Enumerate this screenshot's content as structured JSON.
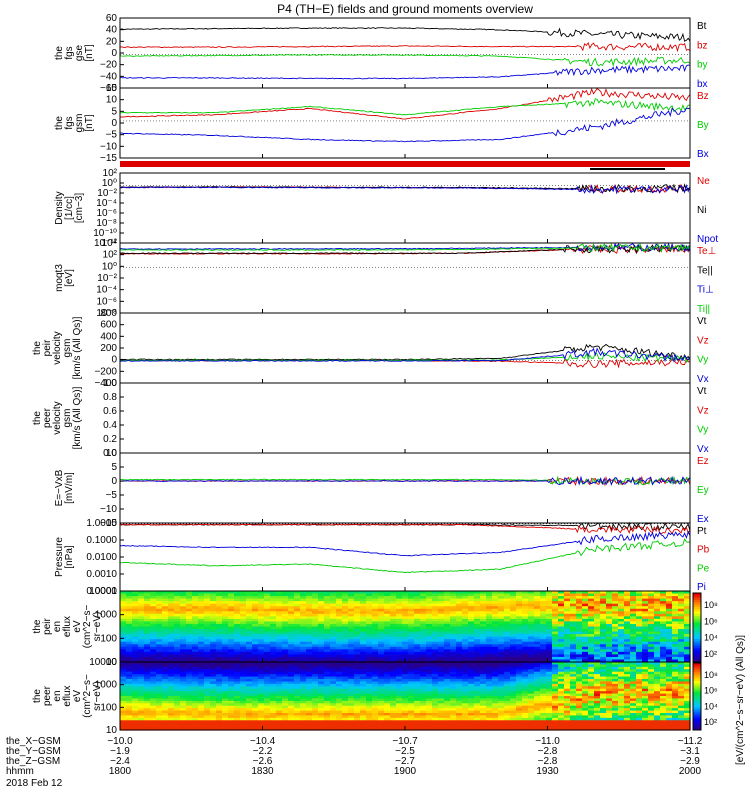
{
  "title": "P4 (TH−E) fields and ground moments overview",
  "date_label": "2018 Feb 12",
  "colors": {
    "black": "#000000",
    "red": "#dd0000",
    "green": "#00cc00",
    "blue": "#0000dd"
  },
  "ephemeris": {
    "row_labels": [
      "the_X−GSM",
      "the_Y−GSM",
      "the_Z−GSM",
      "hhmm"
    ],
    "columns": [
      [
        "−10.0",
        "−1.9",
        "−2.4",
        "1800"
      ],
      [
        "−10.4",
        "−2.2",
        "−2.6",
        "1830"
      ],
      [
        "−10.7",
        "−2.5",
        "−2.7",
        "1900"
      ],
      [
        "−11.0",
        "−2.8",
        "−2.8",
        "1930"
      ],
      [
        "−11.2",
        "−3.1",
        "−2.9",
        "2000"
      ]
    ]
  },
  "chart_data": [
    {
      "type": "line",
      "id": "fgs_gse",
      "ylabel": [
        "the",
        "fgs",
        "gse",
        "[nT]"
      ],
      "ylim": [
        -60,
        65
      ],
      "yticks": [
        "60",
        "40",
        "20",
        "0",
        "−20",
        "−40",
        "−60"
      ],
      "time_range": [
        "18:00",
        "20:00"
      ],
      "series": [
        {
          "name": "Bt",
          "color": "black",
          "levels": [
            45,
            46,
            47,
            47,
            44,
            36,
            30
          ],
          "noise_after": 0.75
        },
        {
          "name": "bz",
          "color": "red",
          "levels": [
            13,
            13,
            14,
            15,
            14,
            14,
            13
          ],
          "noise_after": 0.8
        },
        {
          "name": "by",
          "color": "green",
          "levels": [
            -3,
            -2,
            -1,
            -1,
            -3,
            -14,
            -10
          ],
          "noise_after": 0.78
        },
        {
          "name": "bx",
          "color": "blue",
          "levels": [
            -42,
            -42,
            -43,
            -43,
            -40,
            -28,
            -25
          ],
          "noise_after": 0.76
        }
      ]
    },
    {
      "type": "line",
      "id": "fgs_gsm",
      "ylabel": [
        "the",
        "fgs",
        "gsm",
        "[nT]"
      ],
      "ylim": [
        -18,
        16
      ],
      "yticks": [
        "15",
        "10",
        "5",
        "0",
        "−5",
        "−10",
        "−15"
      ],
      "time_range": [
        "18:00",
        "20:00"
      ],
      "series": [
        {
          "name": "Bz",
          "color": "red",
          "levels": [
            2,
            3,
            6,
            1,
            6,
            14,
            11
          ],
          "noise_after": 0.75
        },
        {
          "name": "By",
          "color": "green",
          "levels": [
            4,
            4,
            7,
            3,
            7,
            9,
            6
          ],
          "noise_after": 0.78
        },
        {
          "name": "Bx",
          "color": "blue",
          "levels": [
            -6,
            -7,
            -9,
            -10,
            -9,
            -3,
            6
          ],
          "noise_after": 0.76
        }
      ]
    },
    {
      "type": "line",
      "id": "density",
      "ylabel": [
        "Density",
        "[1/cc]",
        "[cm−3]"
      ],
      "ylim": [
        -14,
        3
      ],
      "log": true,
      "yticks": [
        "10²",
        "10⁰",
        "10⁻²",
        "10⁻⁴",
        "10⁻⁶",
        "10⁻⁸",
        "10⁻¹⁰",
        "10⁻¹²"
      ],
      "time_range": [
        "18:00",
        "20:00"
      ],
      "series": [
        {
          "name": "Ne",
          "color": "red",
          "levels": [
            -0.5,
            -0.4,
            -0.5,
            -0.6,
            -0.9,
            -0.8
          ],
          "noise_after": 0.8
        },
        {
          "name": "Ni",
          "color": "black",
          "levels": [
            -0.4,
            -0.4,
            -0.5,
            -0.5,
            -0.8,
            -0.7
          ],
          "noise_after": 0.8
        },
        {
          "name": "Npot",
          "color": "blue",
          "levels": [
            -0.5,
            -0.5,
            -0.6,
            -0.6,
            -1.0,
            -0.9
          ],
          "noise_after": 0.8
        }
      ]
    },
    {
      "type": "line",
      "id": "temperature",
      "ylabel": [
        "moqt3",
        "[eV]"
      ],
      "ylim": [
        -8.5,
        4.5
      ],
      "log": true,
      "yticks": [
        "10⁴",
        "10²",
        "10⁰",
        "10⁻²",
        "10⁻⁴",
        "10⁻⁶",
        "10⁻⁸"
      ],
      "time_range": [
        "18:00",
        "20:00"
      ],
      "series": [
        {
          "name": "Te⊥",
          "color": "red",
          "levels": [
            2.5,
            2.5,
            2.5,
            2.6,
            3.3,
            3.3
          ],
          "noise_after": 0.78
        },
        {
          "name": "Te||",
          "color": "black",
          "levels": [
            2.6,
            2.6,
            2.6,
            2.6,
            3.4,
            3.4
          ],
          "noise_after": 0.78
        },
        {
          "name": "Ti⊥",
          "color": "blue",
          "levels": [
            3.4,
            3.4,
            3.4,
            3.5,
            3.7,
            3.7
          ],
          "noise_after": 0.8
        },
        {
          "name": "Ti||",
          "color": "green",
          "levels": [
            3.2,
            3.2,
            3.2,
            3.3,
            3.6,
            3.6
          ],
          "noise_after": 0.8
        }
      ]
    },
    {
      "type": "line",
      "id": "peir_velocity",
      "ylabel": [
        "the",
        "peir",
        "velocity",
        "gsm",
        "[km/s (All Qs)]"
      ],
      "ylim": [
        -400,
        850
      ],
      "yticks": [
        "800",
        "600",
        "400",
        "200",
        "0",
        "−200",
        "−400"
      ],
      "time_range": [
        "18:00",
        "20:00"
      ],
      "series": [
        {
          "name": "Vt",
          "color": "black",
          "levels": [
            20,
            20,
            20,
            20,
            40,
            250,
            60
          ],
          "noise_after": 0.78
        },
        {
          "name": "Vz",
          "color": "red",
          "levels": [
            0,
            0,
            0,
            0,
            -10,
            -60,
            -20
          ],
          "noise_after": 0.78
        },
        {
          "name": "Vy",
          "color": "green",
          "levels": [
            5,
            5,
            5,
            5,
            10,
            80,
            20
          ],
          "noise_after": 0.78
        },
        {
          "name": "Vx",
          "color": "blue",
          "levels": [
            -5,
            -5,
            -5,
            -5,
            0,
            150,
            30
          ],
          "noise_after": 0.78
        }
      ]
    },
    {
      "type": "line",
      "id": "peer_velocity",
      "ylabel": [
        "the",
        "peer",
        "velocity",
        "gsm",
        "[km/s (All Qs)]"
      ],
      "ylim": [
        0,
        1
      ],
      "yticks": [
        "1.0",
        "0.8",
        "0.6",
        "0.4",
        "0.2",
        "0.0"
      ],
      "time_range": [
        "18:00",
        "20:00"
      ],
      "series": [
        {
          "name": "Vt",
          "color": "black",
          "levels": []
        },
        {
          "name": "Vz",
          "color": "red",
          "levels": []
        },
        {
          "name": "Vy",
          "color": "green",
          "levels": []
        },
        {
          "name": "Vx",
          "color": "blue",
          "levels": []
        }
      ]
    },
    {
      "type": "line",
      "id": "efield",
      "ylabel": [
        "E=−VxB",
        "[mV/m]"
      ],
      "ylim": [
        -15,
        10
      ],
      "yticks": [
        "10",
        "5",
        "0",
        "−5",
        "−10",
        "−15"
      ],
      "time_range": [
        "18:00",
        "20:00"
      ],
      "series": [
        {
          "name": "Ez",
          "color": "red",
          "levels": [
            0,
            0,
            0,
            0,
            0,
            0,
            0
          ],
          "noise_after": 0.75
        },
        {
          "name": "Ey",
          "color": "green",
          "levels": [
            0.5,
            0.5,
            0.5,
            0.5,
            0.5,
            0,
            0
          ],
          "noise_after": 0.75
        },
        {
          "name": "Ex",
          "color": "blue",
          "levels": [
            0,
            0,
            0,
            0,
            0,
            0,
            0
          ],
          "noise_after": 0.75
        }
      ]
    },
    {
      "type": "line",
      "id": "pressure",
      "ylabel": [
        "Pressure",
        "[nPa]"
      ],
      "ylim": [
        -4,
        0.05
      ],
      "log": true,
      "yticks": [
        "1.0000",
        "0.1000",
        "0.0100",
        "0.0010",
        "0.0001"
      ],
      "time_range": [
        "18:00",
        "20:00"
      ],
      "series": [
        {
          "name": "Pt",
          "color": "black",
          "levels": [
            -0.05,
            -0.05,
            -0.05,
            -0.05,
            -0.1,
            -0.2
          ],
          "noise_after": 0.8
        },
        {
          "name": "Pb",
          "color": "red",
          "levels": [
            -0.05,
            -0.05,
            -0.05,
            -0.05,
            -0.3,
            -0.4
          ],
          "noise_after": 0.8
        },
        {
          "name": "Pe",
          "color": "green",
          "levels": [
            -2.3,
            -2.5,
            -2.4,
            -2.9,
            -2.7,
            -1.5,
            -1.1
          ],
          "noise_after": 0.8
        },
        {
          "name": "Pi",
          "color": "blue",
          "levels": [
            -1.3,
            -1.4,
            -1.4,
            -1.9,
            -1.7,
            -0.9,
            -0.6
          ],
          "noise_after": 0.8
        }
      ]
    },
    {
      "type": "heatmap",
      "id": "peir_eflux",
      "ylabel": [
        "the",
        "peir",
        "en",
        "eflux",
        "eV",
        "(cm^2−s−",
        "sr−eV)"
      ],
      "yticks": [
        "10000",
        "1000",
        "100",
        "10"
      ],
      "log": true,
      "ylim": [
        0.78,
        4.3
      ],
      "ridge_log_energy": [
        3.4,
        3.4,
        3.3,
        3.3,
        3.5,
        3.6,
        3.6
      ]
    },
    {
      "type": "heatmap",
      "id": "peer_eflux",
      "ylabel": [
        "the",
        "peer",
        "en",
        "eflux",
        "eV",
        "(cm^2−s−",
        "sr−eV)"
      ],
      "yticks": [
        "10000",
        "1000",
        "100",
        "10"
      ],
      "log": true,
      "ylim": [
        0.78,
        4.3
      ],
      "ridge_log_energy": [
        1.7,
        1.6,
        1.6,
        1.6,
        1.6,
        2.6,
        2.8
      ]
    }
  ],
  "colorbars": [
    {
      "ticks": [
        "10⁸",
        "10⁶",
        "10⁴",
        "10²"
      ]
    },
    {
      "ticks": [
        "10⁸",
        "10⁶",
        "10⁴",
        "10²"
      ]
    }
  ],
  "colorbar_label": "[eV/(cm^2−s−sr−eV) (All Qs)]"
}
